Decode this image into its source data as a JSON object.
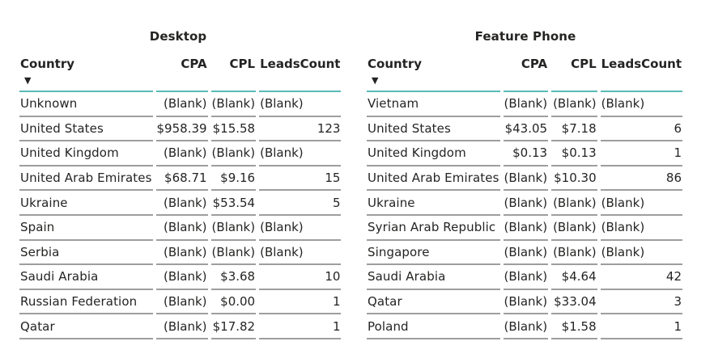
{
  "chart_data": [
    {
      "type": "table",
      "title": "Desktop",
      "columns": [
        "Country",
        "CPA",
        "CPL",
        "LeadsCount"
      ],
      "sorted_column": "Country",
      "sort_direction": "descending",
      "rows": [
        [
          "Unknown",
          "(Blank)",
          "(Blank)",
          "(Blank)"
        ],
        [
          "United States",
          "$958.39",
          "$15.58",
          "123"
        ],
        [
          "United Kingdom",
          "(Blank)",
          "(Blank)",
          "(Blank)"
        ],
        [
          "United Arab Emirates",
          "$68.71",
          "$9.16",
          "15"
        ],
        [
          "Ukraine",
          "(Blank)",
          "$53.54",
          "5"
        ],
        [
          "Spain",
          "(Blank)",
          "(Blank)",
          "(Blank)"
        ],
        [
          "Serbia",
          "(Blank)",
          "(Blank)",
          "(Blank)"
        ],
        [
          "Saudi Arabia",
          "(Blank)",
          "$3.68",
          "10"
        ],
        [
          "Russian Federation",
          "(Blank)",
          "$0.00",
          "1"
        ],
        [
          "Qatar",
          "(Blank)",
          "$17.82",
          "1"
        ]
      ]
    },
    {
      "type": "table",
      "title": "Feature Phone",
      "columns": [
        "Country",
        "CPA",
        "CPL",
        "LeadsCount"
      ],
      "sorted_column": "Country",
      "sort_direction": "descending",
      "rows": [
        [
          "Vietnam",
          "(Blank)",
          "(Blank)",
          "(Blank)"
        ],
        [
          "United States",
          "$43.05",
          "$7.18",
          "6"
        ],
        [
          "United Kingdom",
          "$0.13",
          "$0.13",
          "1"
        ],
        [
          "United Arab Emirates",
          "(Blank)",
          "$10.30",
          "86"
        ],
        [
          "Ukraine",
          "(Blank)",
          "(Blank)",
          "(Blank)"
        ],
        [
          "Syrian Arab Republic",
          "(Blank)",
          "(Blank)",
          "(Blank)"
        ],
        [
          "Singapore",
          "(Blank)",
          "(Blank)",
          "(Blank)"
        ],
        [
          "Saudi Arabia",
          "(Blank)",
          "$4.64",
          "42"
        ],
        [
          "Qatar",
          "(Blank)",
          "$33.04",
          "3"
        ],
        [
          "Poland",
          "(Blank)",
          "$1.58",
          "1"
        ]
      ]
    }
  ],
  "colors": {
    "header_rule": "#5abbb7",
    "row_rule": "#9e9e9e",
    "text": "#252423"
  },
  "icons": {
    "sort_indicator": "sort-descending-icon"
  }
}
